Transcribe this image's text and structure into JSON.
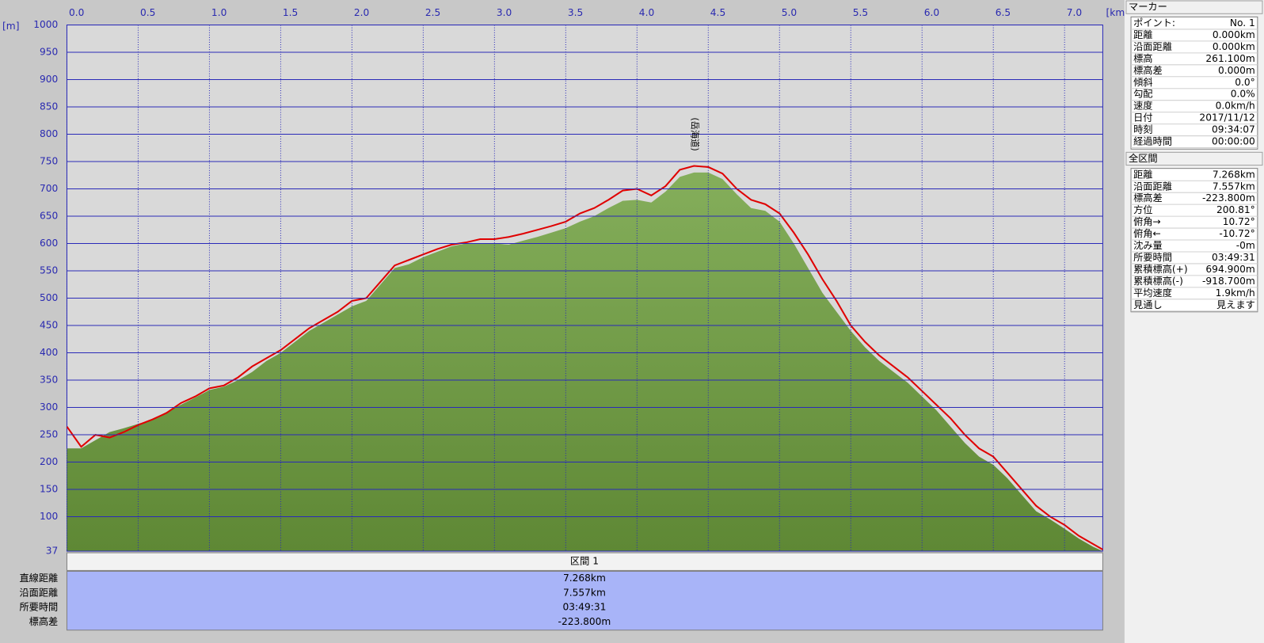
{
  "chart_data": {
    "type": "elevation",
    "y_unit": "[m]",
    "x_unit": "[km]",
    "xlim": [
      0,
      7.268
    ],
    "xticks": [
      {
        "value": 0,
        "label": "0.0"
      },
      0.5,
      {
        "value": 1,
        "label": "1.0"
      },
      1.5,
      {
        "value": 2,
        "label": "2.0"
      },
      2.5,
      {
        "value": 3,
        "label": "3.0"
      },
      3.5,
      {
        "value": 4,
        "label": "4.0"
      },
      4.5,
      {
        "value": 5,
        "label": "5.0"
      },
      5.5,
      {
        "value": 6,
        "label": "6.0"
      },
      6.5,
      {
        "value": 7,
        "label": "7.0"
      }
    ],
    "ylim": [
      37,
      1000
    ],
    "yticks": [
      37,
      100,
      150,
      200,
      250,
      300,
      350,
      400,
      450,
      500,
      550,
      600,
      650,
      700,
      750,
      800,
      850,
      900,
      950,
      1000
    ],
    "grid": true,
    "grid_color": "#2a2ab8",
    "annotation": {
      "text": "(岳海道)",
      "x": 4.4,
      "y": 800
    },
    "x": [
      0,
      0.1,
      0.2,
      0.3,
      0.4,
      0.5,
      0.6,
      0.7,
      0.8,
      0.9,
      1.0,
      1.1,
      1.2,
      1.3,
      1.4,
      1.5,
      1.6,
      1.7,
      1.8,
      1.9,
      2.0,
      2.1,
      2.2,
      2.3,
      2.4,
      2.5,
      2.6,
      2.7,
      2.8,
      2.9,
      3.0,
      3.1,
      3.2,
      3.3,
      3.4,
      3.5,
      3.6,
      3.7,
      3.8,
      3.9,
      4.0,
      4.1,
      4.2,
      4.3,
      4.4,
      4.5,
      4.6,
      4.7,
      4.8,
      4.9,
      5.0,
      5.1,
      5.2,
      5.3,
      5.4,
      5.5,
      5.6,
      5.7,
      5.8,
      5.9,
      6.0,
      6.1,
      6.2,
      6.3,
      6.4,
      6.5,
      6.6,
      6.7,
      6.8,
      6.9,
      7.0,
      7.1,
      7.2,
      7.268
    ],
    "series": [
      {
        "color": "#6fa03e",
        "fill": true,
        "values": [
          225,
          225,
          240,
          255,
          262,
          270,
          278,
          292,
          305,
          318,
          332,
          338,
          350,
          365,
          385,
          400,
          420,
          440,
          455,
          470,
          485,
          495,
          525,
          555,
          562,
          575,
          585,
          595,
          600,
          600,
          600,
          598,
          605,
          612,
          620,
          628,
          640,
          650,
          665,
          678,
          680,
          675,
          695,
          722,
          730,
          730,
          718,
          690,
          665,
          660,
          640,
          600,
          555,
          510,
          475,
          440,
          410,
          385,
          365,
          345,
          320,
          295,
          265,
          235,
          210,
          195,
          170,
          140,
          110,
          95,
          78,
          60,
          45,
          37
        ]
      },
      {
        "color": "#e00000",
        "fill": false,
        "values": [
          265,
          228,
          250,
          245,
          255,
          268,
          278,
          290,
          308,
          320,
          335,
          340,
          355,
          375,
          390,
          405,
          425,
          445,
          460,
          475,
          495,
          500,
          530,
          560,
          570,
          580,
          590,
          598,
          602,
          608,
          608,
          612,
          618,
          625,
          632,
          640,
          655,
          665,
          680,
          697,
          700,
          688,
          705,
          735,
          742,
          740,
          728,
          700,
          680,
          672,
          655,
          620,
          580,
          535,
          495,
          450,
          420,
          395,
          375,
          355,
          330,
          305,
          280,
          250,
          225,
          210,
          180,
          150,
          120,
          100,
          85,
          65,
          50,
          40
        ]
      }
    ]
  },
  "section": {
    "title": "区間 1",
    "rows": [
      [
        "直線距離",
        "7.268km"
      ],
      [
        "沿面距離",
        "7.557km"
      ],
      [
        "所要時間",
        "03:49:31"
      ],
      [
        "標高差",
        "-223.800m"
      ]
    ]
  },
  "marker": {
    "title": "マーカー",
    "rows": [
      [
        "ポイント:",
        "No. 1"
      ],
      [
        "距離",
        "0.000km"
      ],
      [
        "沿面距離",
        "0.000km"
      ],
      [
        "標高",
        "261.100m"
      ],
      [
        "標高差",
        "0.000m"
      ],
      [
        "傾斜",
        "0.0°"
      ],
      [
        "勾配",
        "0.0%"
      ],
      [
        "速度",
        "0.0km/h"
      ],
      [
        "日付",
        "2017/11/12"
      ],
      [
        "時刻",
        "09:34:07"
      ],
      [
        "経過時間",
        "00:00:00"
      ]
    ]
  },
  "total": {
    "title": "全区間",
    "rows": [
      [
        "距離",
        "7.268km"
      ],
      [
        "沿面距離",
        "7.557km"
      ],
      [
        "標高差",
        "-223.800m"
      ],
      [
        "方位",
        "200.81°"
      ],
      [
        "俯角→",
        "10.72°"
      ],
      [
        "俯角←",
        "-10.72°"
      ],
      [
        "沈み量",
        "-0m"
      ],
      [
        "所要時間",
        "03:49:31"
      ],
      [
        "累積標高(+)",
        "694.900m"
      ],
      [
        "累積標高(-)",
        "-918.700m"
      ],
      [
        "平均速度",
        "1.9km/h"
      ],
      [
        "見通し",
        "見えます"
      ]
    ]
  }
}
